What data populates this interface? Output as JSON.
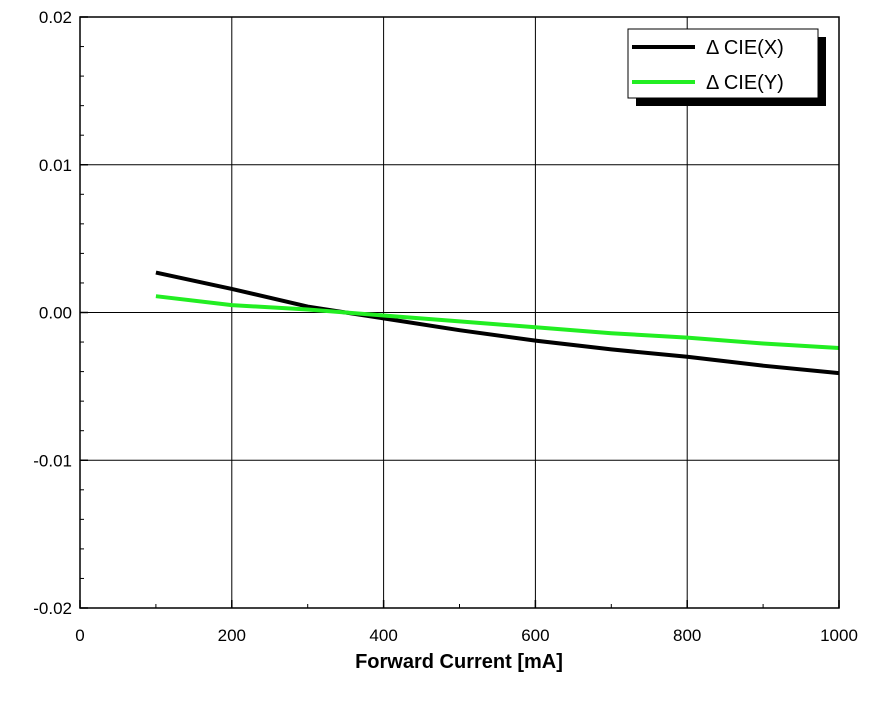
{
  "chart_data": {
    "type": "line",
    "title": "",
    "xlabel": "Forward Current [mA]",
    "ylabel": "",
    "xlim": [
      0,
      1000
    ],
    "ylim": [
      -0.02,
      0.02
    ],
    "x_ticks": [
      "0",
      "200",
      "400",
      "600",
      "800",
      "1000"
    ],
    "y_ticks": [
      "-0.02",
      "-0.01",
      "0.00",
      "0.01",
      "0.02"
    ],
    "grid": true,
    "legend_position": "top-right",
    "series": [
      {
        "name": "Δ CIE(X)",
        "color": "#000000",
        "x": [
          100,
          200,
          300,
          350,
          400,
          500,
          600,
          700,
          800,
          900,
          1000
        ],
        "y": [
          0.0027,
          0.0016,
          0.0004,
          0.0,
          -0.0004,
          -0.0012,
          -0.0019,
          -0.0025,
          -0.003,
          -0.0036,
          -0.0041
        ]
      },
      {
        "name": "Δ CIE(Y)",
        "color": "#22ee22",
        "x": [
          100,
          200,
          300,
          350,
          400,
          500,
          600,
          700,
          800,
          900,
          1000
        ],
        "y": [
          0.0011,
          0.0005,
          0.0002,
          0.0,
          -0.0002,
          -0.0006,
          -0.001,
          -0.0014,
          -0.0017,
          -0.0021,
          -0.0024
        ]
      }
    ]
  }
}
